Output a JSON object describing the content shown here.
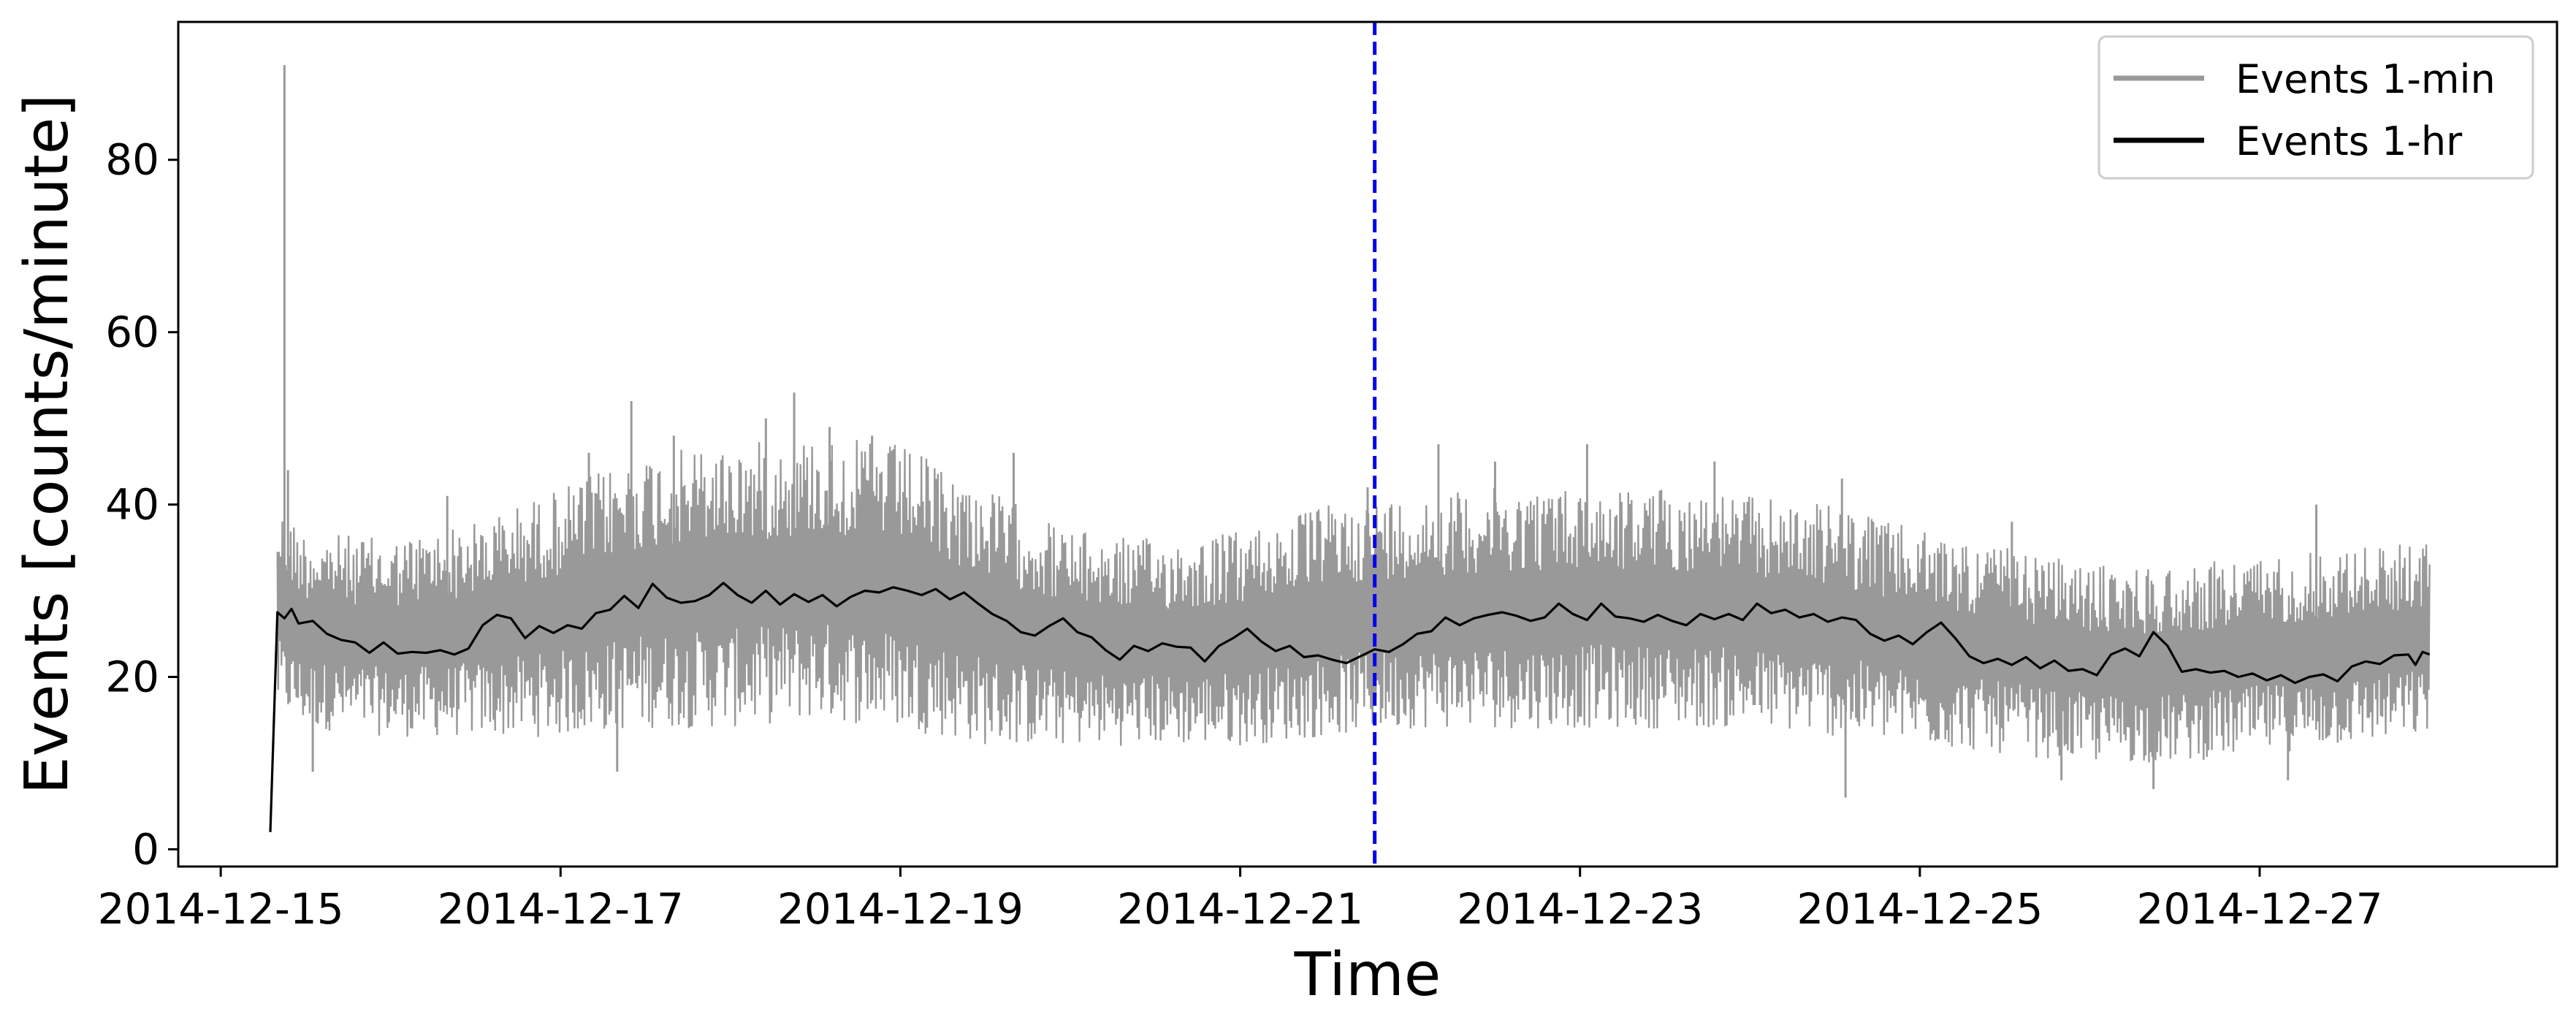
{
  "chart_data": {
    "type": "line",
    "title": "",
    "xlabel": "Time",
    "ylabel": "Events [counts/minute]",
    "x_range": [
      "2014-12-14T18:00",
      "2014-12-28T18:00"
    ],
    "ylim": [
      -2,
      96
    ],
    "x_ticks": [
      "2014-12-15",
      "2014-12-17",
      "2014-12-19",
      "2014-12-21",
      "2014-12-23",
      "2014-12-25",
      "2014-12-27"
    ],
    "y_ticks": [
      0,
      20,
      40,
      60,
      80
    ],
    "grid": false,
    "legend_position": "top-right",
    "marker_line": {
      "x": "2014-12-21T19:00",
      "style": "dashed",
      "color": "#0000ee"
    },
    "series": [
      {
        "name": "Events 1-min",
        "color": "#999999",
        "x_start": "2014-12-15T08:00",
        "x_end": "2014-12-28T00:00",
        "envelope": {
          "t": [
            "2014-12-15T08:00",
            "2014-12-15T12:00",
            "2014-12-16T00:00",
            "2014-12-16T12:00",
            "2014-12-17T00:00",
            "2014-12-17T12:00",
            "2014-12-18T00:00",
            "2014-12-18T12:00",
            "2014-12-19T00:00",
            "2014-12-19T12:00",
            "2014-12-20T00:00",
            "2014-12-20T12:00",
            "2014-12-21T00:00",
            "2014-12-21T12:00",
            "2014-12-22T00:00",
            "2014-12-22T12:00",
            "2014-12-23T00:00",
            "2014-12-23T12:00",
            "2014-12-24T00:00",
            "2014-12-24T12:00",
            "2014-12-25T00:00",
            "2014-12-25T12:00",
            "2014-12-26T00:00",
            "2014-12-26T12:00",
            "2014-12-27T00:00",
            "2014-12-27T12:00",
            "2014-12-28T00:00"
          ],
          "low": [
            16,
            14,
            13,
            13,
            13,
            14,
            14,
            15,
            14,
            12,
            12,
            12,
            12,
            13,
            14,
            14,
            14,
            14,
            14,
            13,
            12,
            11,
            10,
            10,
            11,
            12,
            13
          ],
          "high": [
            40,
            37,
            36,
            38,
            42,
            46,
            47,
            48,
            47,
            42,
            37,
            36,
            37,
            40,
            41,
            42,
            42,
            42,
            41,
            40,
            37,
            35,
            33,
            33,
            34,
            35,
            36
          ]
        },
        "spikes": [
          {
            "x": "2014-12-15T09:00",
            "y": 91
          },
          {
            "x": "2014-12-15T09:30",
            "y": 44
          },
          {
            "x": "2014-12-16T08:00",
            "y": 41
          },
          {
            "x": "2014-12-17T04:00",
            "y": 46
          },
          {
            "x": "2014-12-17T10:00",
            "y": 52
          },
          {
            "x": "2014-12-17T16:00",
            "y": 48
          },
          {
            "x": "2014-12-18T05:00",
            "y": 50
          },
          {
            "x": "2014-12-18T09:00",
            "y": 53
          },
          {
            "x": "2014-12-18T14:00",
            "y": 49
          },
          {
            "x": "2014-12-18T20:00",
            "y": 48
          },
          {
            "x": "2014-12-19T16:00",
            "y": 46
          },
          {
            "x": "2014-12-21T18:00",
            "y": 42
          },
          {
            "x": "2014-12-22T04:00",
            "y": 47
          },
          {
            "x": "2014-12-22T12:00",
            "y": 45
          },
          {
            "x": "2014-12-23T01:00",
            "y": 47
          },
          {
            "x": "2014-12-23T19:00",
            "y": 45
          },
          {
            "x": "2014-12-24T13:00",
            "y": 43
          },
          {
            "x": "2014-12-25T13:00",
            "y": 38
          },
          {
            "x": "2014-12-27T08:00",
            "y": 40
          },
          {
            "x": "2014-12-24T13:30",
            "y": 6
          },
          {
            "x": "2014-12-25T20:00",
            "y": 8
          },
          {
            "x": "2014-12-26T09:00",
            "y": 7
          },
          {
            "x": "2014-12-27T04:00",
            "y": 8
          },
          {
            "x": "2014-12-17T08:00",
            "y": 9
          },
          {
            "x": "2014-12-15T13:00",
            "y": 9
          }
        ]
      },
      {
        "name": "Events 1-hr",
        "color": "#000000",
        "points": [
          [
            "2014-12-15T07:00",
            2.0
          ],
          [
            "2014-12-15T08:00",
            27.5
          ],
          [
            "2014-12-15T09:00",
            26.8
          ],
          [
            "2014-12-15T10:00",
            27.9
          ],
          [
            "2014-12-15T11:00",
            26.2
          ],
          [
            "2014-12-15T13:00",
            26.5
          ],
          [
            "2014-12-15T15:00",
            25.0
          ],
          [
            "2014-12-15T17:00",
            24.3
          ],
          [
            "2014-12-15T19:00",
            24.0
          ],
          [
            "2014-12-15T21:00",
            22.8
          ],
          [
            "2014-12-15T23:00",
            24.0
          ],
          [
            "2014-12-16T01:00",
            22.7
          ],
          [
            "2014-12-16T03:00",
            22.9
          ],
          [
            "2014-12-16T05:00",
            22.8
          ],
          [
            "2014-12-16T07:00",
            23.1
          ],
          [
            "2014-12-16T09:00",
            22.6
          ],
          [
            "2014-12-16T11:00",
            23.3
          ],
          [
            "2014-12-16T13:00",
            26.0
          ],
          [
            "2014-12-16T15:00",
            27.2
          ],
          [
            "2014-12-16T17:00",
            26.8
          ],
          [
            "2014-12-16T19:00",
            24.5
          ],
          [
            "2014-12-16T21:00",
            25.9
          ],
          [
            "2014-12-16T23:00",
            25.1
          ],
          [
            "2014-12-17T01:00",
            26.0
          ],
          [
            "2014-12-17T03:00",
            25.6
          ],
          [
            "2014-12-17T05:00",
            27.4
          ],
          [
            "2014-12-17T07:00",
            27.8
          ],
          [
            "2014-12-17T09:00",
            29.4
          ],
          [
            "2014-12-17T11:00",
            28.0
          ],
          [
            "2014-12-17T13:00",
            30.8
          ],
          [
            "2014-12-17T15:00",
            29.2
          ],
          [
            "2014-12-17T17:00",
            28.6
          ],
          [
            "2014-12-17T19:00",
            28.8
          ],
          [
            "2014-12-17T21:00",
            29.5
          ],
          [
            "2014-12-17T23:00",
            30.9
          ],
          [
            "2014-12-18T01:00",
            29.5
          ],
          [
            "2014-12-18T03:00",
            28.6
          ],
          [
            "2014-12-18T05:00",
            30.0
          ],
          [
            "2014-12-18T07:00",
            28.4
          ],
          [
            "2014-12-18T09:00",
            29.6
          ],
          [
            "2014-12-18T11:00",
            28.7
          ],
          [
            "2014-12-18T13:00",
            29.5
          ],
          [
            "2014-12-18T15:00",
            28.2
          ],
          [
            "2014-12-18T17:00",
            29.3
          ],
          [
            "2014-12-18T19:00",
            30.0
          ],
          [
            "2014-12-18T21:00",
            29.8
          ],
          [
            "2014-12-18T23:00",
            30.4
          ],
          [
            "2014-12-19T01:00",
            30.0
          ],
          [
            "2014-12-19T03:00",
            29.5
          ],
          [
            "2014-12-19T05:00",
            30.2
          ],
          [
            "2014-12-19T07:00",
            29.0
          ],
          [
            "2014-12-19T09:00",
            29.8
          ],
          [
            "2014-12-19T11:00",
            28.5
          ],
          [
            "2014-12-19T13:00",
            27.3
          ],
          [
            "2014-12-19T15:00",
            26.5
          ],
          [
            "2014-12-19T17:00",
            25.2
          ],
          [
            "2014-12-19T19:00",
            24.8
          ],
          [
            "2014-12-19T21:00",
            25.9
          ],
          [
            "2014-12-19T23:00",
            26.8
          ],
          [
            "2014-12-20T01:00",
            25.2
          ],
          [
            "2014-12-20T03:00",
            24.6
          ],
          [
            "2014-12-20T05:00",
            23.1
          ],
          [
            "2014-12-20T07:00",
            22.0
          ],
          [
            "2014-12-20T09:00",
            23.6
          ],
          [
            "2014-12-20T11:00",
            23.0
          ],
          [
            "2014-12-20T13:00",
            23.9
          ],
          [
            "2014-12-20T15:00",
            23.5
          ],
          [
            "2014-12-20T17:00",
            23.4
          ],
          [
            "2014-12-20T19:00",
            21.8
          ],
          [
            "2014-12-20T21:00",
            23.6
          ],
          [
            "2014-12-20T23:00",
            24.5
          ],
          [
            "2014-12-21T01:00",
            25.6
          ],
          [
            "2014-12-21T03:00",
            24.1
          ],
          [
            "2014-12-21T05:00",
            23.0
          ],
          [
            "2014-12-21T07:00",
            23.6
          ],
          [
            "2014-12-21T09:00",
            22.3
          ],
          [
            "2014-12-21T11:00",
            22.5
          ],
          [
            "2014-12-21T13:00",
            22.0
          ],
          [
            "2014-12-21T15:00",
            21.6
          ],
          [
            "2014-12-21T17:00",
            22.4
          ],
          [
            "2014-12-21T19:00",
            23.2
          ],
          [
            "2014-12-21T21:00",
            22.9
          ],
          [
            "2014-12-21T23:00",
            23.8
          ],
          [
            "2014-12-22T01:00",
            25.0
          ],
          [
            "2014-12-22T03:00",
            25.3
          ],
          [
            "2014-12-22T05:00",
            26.9
          ],
          [
            "2014-12-22T07:00",
            26.0
          ],
          [
            "2014-12-22T09:00",
            26.8
          ],
          [
            "2014-12-22T11:00",
            27.2
          ],
          [
            "2014-12-22T13:00",
            27.5
          ],
          [
            "2014-12-22T15:00",
            27.1
          ],
          [
            "2014-12-22T17:00",
            26.5
          ],
          [
            "2014-12-22T19:00",
            26.9
          ],
          [
            "2014-12-22T21:00",
            28.5
          ],
          [
            "2014-12-22T23:00",
            27.3
          ],
          [
            "2014-12-23T01:00",
            26.6
          ],
          [
            "2014-12-23T03:00",
            28.5
          ],
          [
            "2014-12-23T05:00",
            27.0
          ],
          [
            "2014-12-23T07:00",
            26.8
          ],
          [
            "2014-12-23T09:00",
            26.4
          ],
          [
            "2014-12-23T11:00",
            27.2
          ],
          [
            "2014-12-23T13:00",
            26.5
          ],
          [
            "2014-12-23T15:00",
            26.0
          ],
          [
            "2014-12-23T17:00",
            27.3
          ],
          [
            "2014-12-23T19:00",
            26.7
          ],
          [
            "2014-12-23T21:00",
            27.3
          ],
          [
            "2014-12-23T23:00",
            26.6
          ],
          [
            "2014-12-24T01:00",
            28.5
          ],
          [
            "2014-12-24T03:00",
            27.4
          ],
          [
            "2014-12-24T05:00",
            27.8
          ],
          [
            "2014-12-24T07:00",
            26.9
          ],
          [
            "2014-12-24T09:00",
            27.3
          ],
          [
            "2014-12-24T11:00",
            26.4
          ],
          [
            "2014-12-24T13:00",
            26.9
          ],
          [
            "2014-12-24T15:00",
            26.6
          ],
          [
            "2014-12-24T17:00",
            25.0
          ],
          [
            "2014-12-24T19:00",
            24.2
          ],
          [
            "2014-12-24T21:00",
            24.8
          ],
          [
            "2014-12-24T23:00",
            23.8
          ],
          [
            "2014-12-25T01:00",
            25.2
          ],
          [
            "2014-12-25T03:00",
            26.3
          ],
          [
            "2014-12-25T05:00",
            24.5
          ],
          [
            "2014-12-25T07:00",
            22.4
          ],
          [
            "2014-12-25T09:00",
            21.6
          ],
          [
            "2014-12-25T11:00",
            22.1
          ],
          [
            "2014-12-25T13:00",
            21.4
          ],
          [
            "2014-12-25T15:00",
            22.3
          ],
          [
            "2014-12-25T17:00",
            21.0
          ],
          [
            "2014-12-25T19:00",
            21.9
          ],
          [
            "2014-12-25T21:00",
            20.7
          ],
          [
            "2014-12-25T23:00",
            20.9
          ],
          [
            "2014-12-26T01:00",
            20.2
          ],
          [
            "2014-12-26T03:00",
            22.6
          ],
          [
            "2014-12-26T05:00",
            23.3
          ],
          [
            "2014-12-26T07:00",
            22.4
          ],
          [
            "2014-12-26T09:00",
            25.2
          ],
          [
            "2014-12-26T11:00",
            23.6
          ],
          [
            "2014-12-26T13:00",
            20.6
          ],
          [
            "2014-12-26T15:00",
            20.9
          ],
          [
            "2014-12-26T17:00",
            20.5
          ],
          [
            "2014-12-26T19:00",
            20.7
          ],
          [
            "2014-12-26T21:00",
            20.0
          ],
          [
            "2014-12-26T23:00",
            20.4
          ],
          [
            "2014-12-27T01:00",
            19.6
          ],
          [
            "2014-12-27T03:00",
            20.2
          ],
          [
            "2014-12-27T05:00",
            19.3
          ],
          [
            "2014-12-27T07:00",
            20.0
          ],
          [
            "2014-12-27T09:00",
            20.3
          ],
          [
            "2014-12-27T11:00",
            19.5
          ],
          [
            "2014-12-27T13:00",
            21.2
          ],
          [
            "2014-12-27T15:00",
            21.8
          ],
          [
            "2014-12-27T17:00",
            21.5
          ],
          [
            "2014-12-27T19:00",
            22.5
          ],
          [
            "2014-12-27T21:00",
            22.6
          ],
          [
            "2014-12-27T22:00",
            21.4
          ],
          [
            "2014-12-27T23:00",
            22.9
          ],
          [
            "2014-12-28T00:00",
            22.6
          ]
        ]
      }
    ]
  }
}
